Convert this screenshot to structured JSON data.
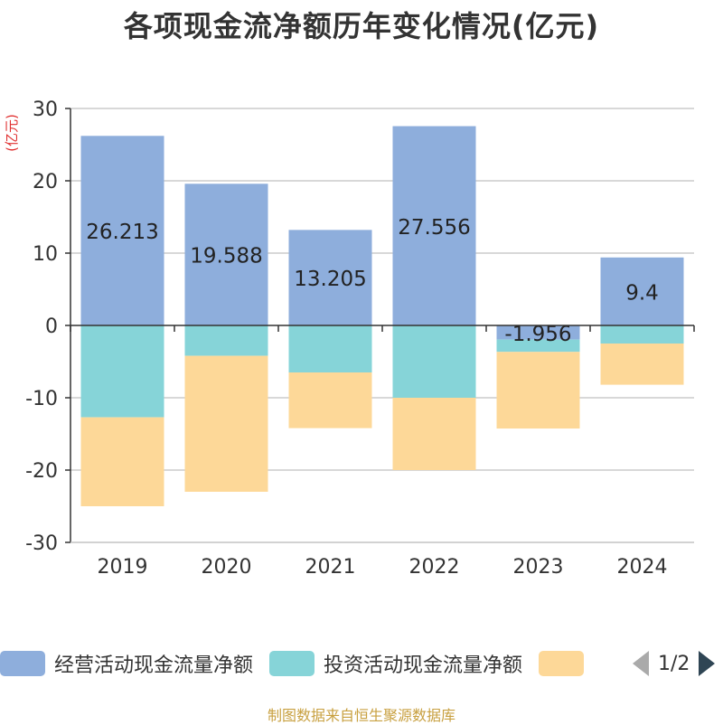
{
  "title": "各项现金流净额历年变化情况(亿元)",
  "unit_label": "(亿元)",
  "footer": "制图数据来自恒生聚源数据库",
  "pager": {
    "text": "1/2"
  },
  "colors": {
    "operating": "#8eaedc",
    "investing": "#86d4d8",
    "financing": "#fdd898",
    "grid": "#cccccc",
    "unit": "#e03030"
  },
  "legend": [
    {
      "label": "经营活动现金流量净额",
      "color": "#8eaedc"
    },
    {
      "label": "投资活动现金流量净额",
      "color": "#86d4d8"
    },
    {
      "label": "",
      "color": "#fdd898"
    }
  ],
  "chart_data": {
    "type": "bar",
    "stacked": true,
    "categories": [
      "2019",
      "2020",
      "2021",
      "2022",
      "2023",
      "2024"
    ],
    "ylim": [
      -30,
      30
    ],
    "yticks": [
      30,
      20,
      10,
      0,
      -10,
      -20,
      -30
    ],
    "grid": true,
    "series": [
      {
        "name": "经营活动现金流量净额",
        "values": [
          26.213,
          19.588,
          13.205,
          27.556,
          -1.956,
          9.4
        ],
        "labels": [
          "26.213",
          "19.588",
          "13.205",
          "27.556",
          "-1.956",
          "9.4"
        ]
      },
      {
        "name": "投资活动现金流量净额",
        "values": [
          -12.7,
          -4.2,
          -6.5,
          -10.0,
          -1.7,
          -2.5
        ]
      },
      {
        "values": [
          -12.3,
          -18.8,
          -7.7,
          -10.0,
          -10.6,
          -5.7
        ]
      }
    ]
  }
}
